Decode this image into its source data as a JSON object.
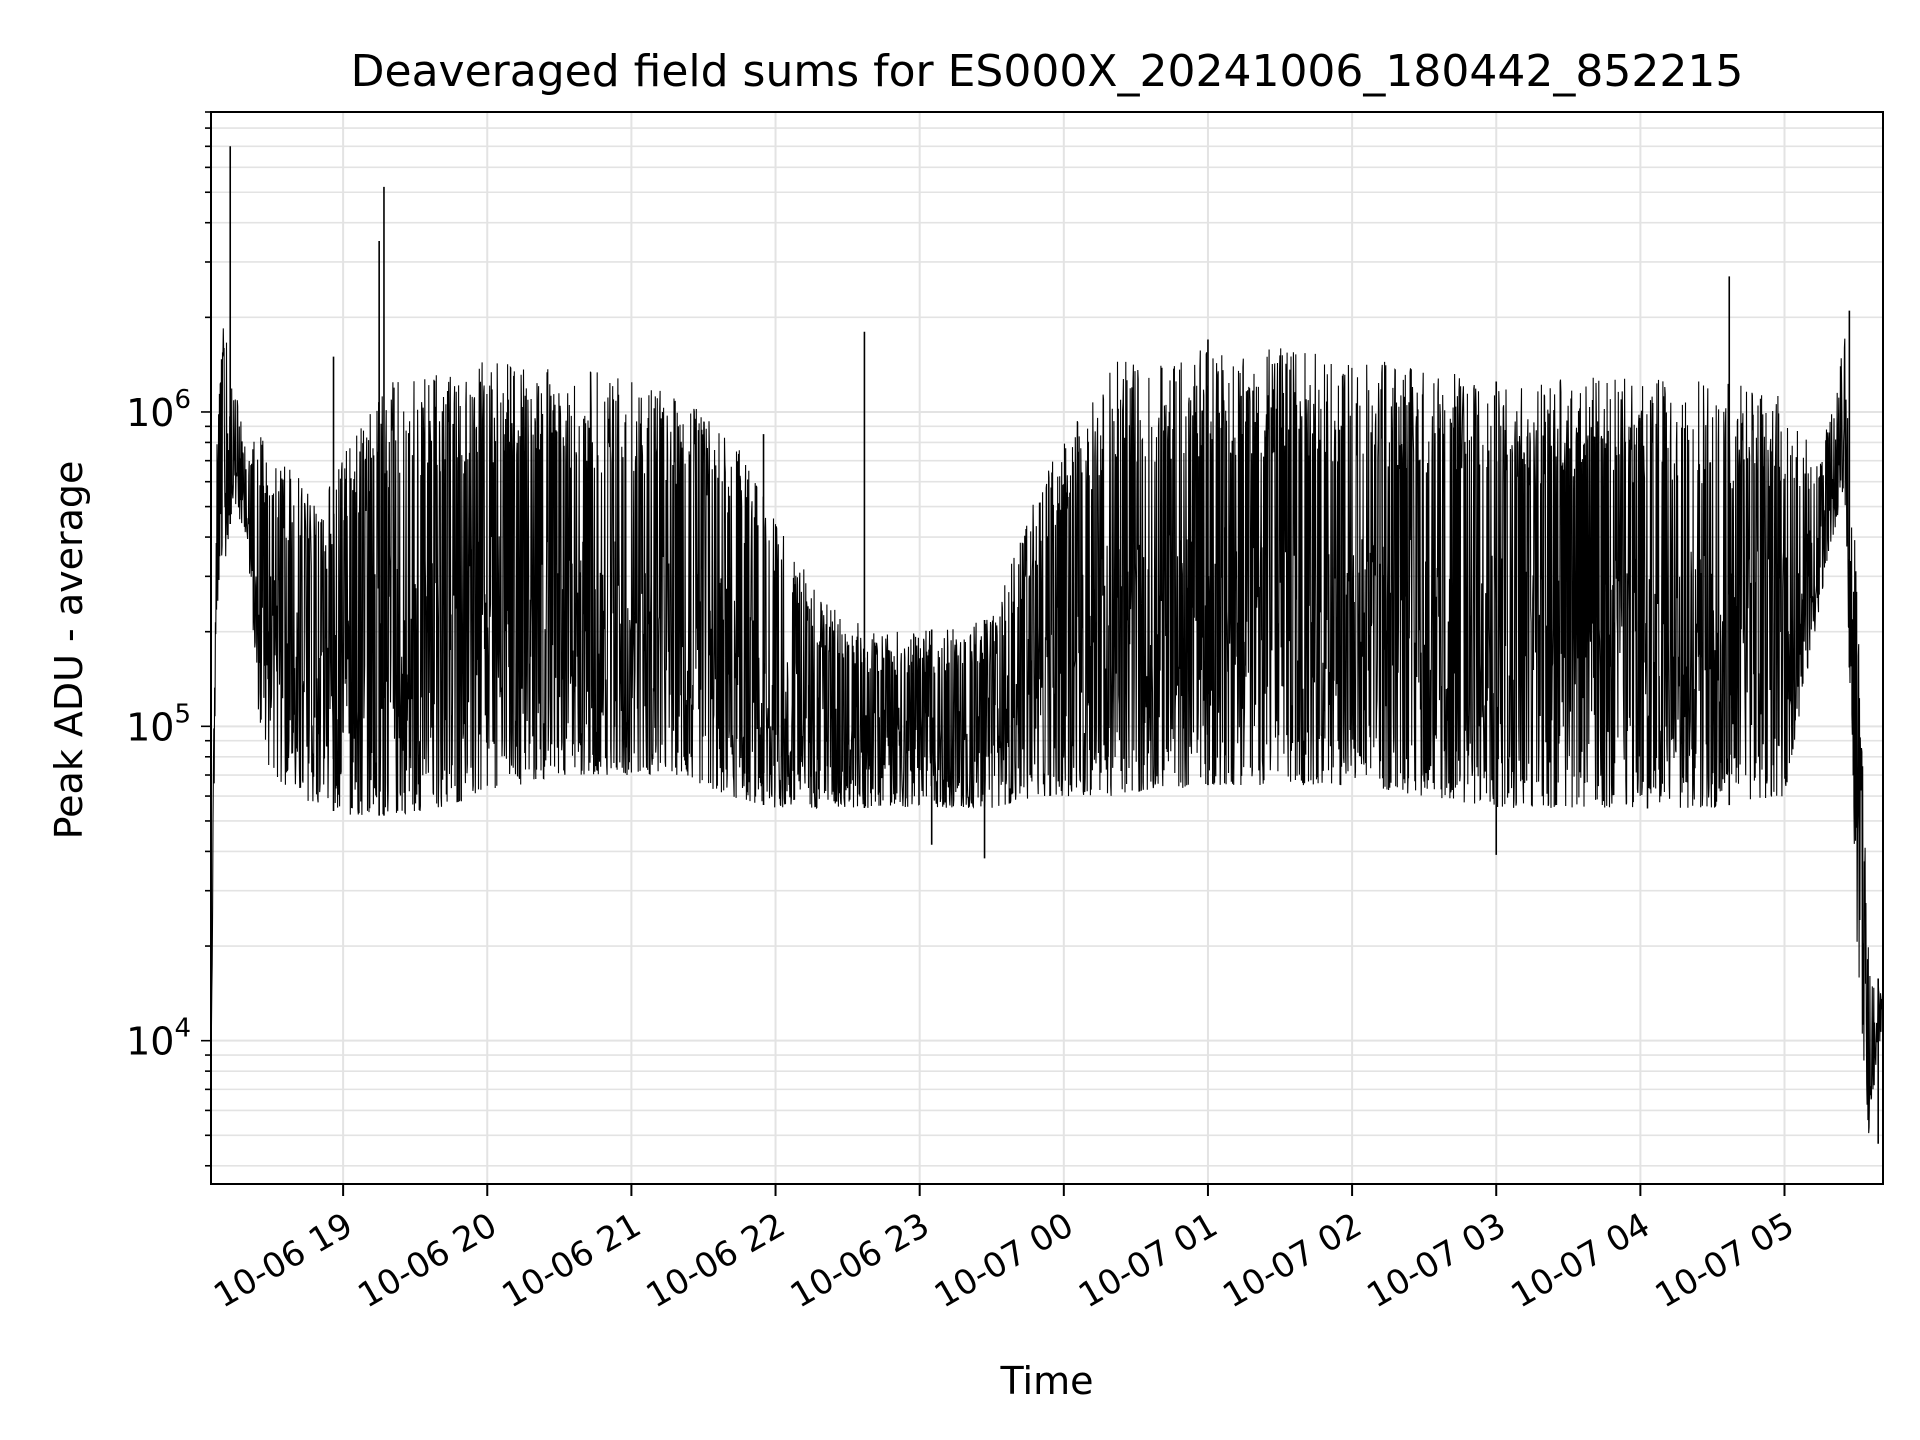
{
  "chart_data": {
    "type": "line",
    "title": "Deaveraged field sums for ES000X_20241006_180442_852215",
    "xlabel": "Time",
    "ylabel": "Peak ADU - average",
    "yscale": "log",
    "ylim": [
      3500,
      9000000
    ],
    "xlim": [
      "2024-10-06 18:05",
      "2024-10-07 05:41"
    ],
    "x_ticks": [
      {
        "at": "2024-10-06 19:00",
        "label": "10-06 19"
      },
      {
        "at": "2024-10-06 20:00",
        "label": "10-06 20"
      },
      {
        "at": "2024-10-06 21:00",
        "label": "10-06 21"
      },
      {
        "at": "2024-10-06 22:00",
        "label": "10-06 22"
      },
      {
        "at": "2024-10-06 23:00",
        "label": "10-06 23"
      },
      {
        "at": "2024-10-07 00:00",
        "label": "10-07 00"
      },
      {
        "at": "2024-10-07 01:00",
        "label": "10-07 01"
      },
      {
        "at": "2024-10-07 02:00",
        "label": "10-07 02"
      },
      {
        "at": "2024-10-07 03:00",
        "label": "10-07 03"
      },
      {
        "at": "2024-10-07 04:00",
        "label": "10-07 04"
      },
      {
        "at": "2024-10-07 05:00",
        "label": "10-07 05"
      }
    ],
    "y_ticks": [
      {
        "value": 10000,
        "base": "10",
        "exp": "4"
      },
      {
        "value": 100000,
        "base": "10",
        "exp": "5"
      },
      {
        "value": 1000000,
        "base": "10",
        "exp": "6"
      }
    ],
    "grid": true,
    "line_color": "#000000",
    "grid_color": "#e3e3e3",
    "series": [
      {
        "envelope": [
          {
            "t": "2024-10-06 18:05",
            "low": 8000,
            "high": 8000
          },
          {
            "t": "2024-10-06 18:07",
            "low": 180000,
            "high": 700000
          },
          {
            "t": "2024-10-06 18:10",
            "low": 300000,
            "high": 2200000
          },
          {
            "t": "2024-10-06 18:14",
            "low": 500000,
            "high": 1500000
          },
          {
            "t": "2024-10-06 18:20",
            "low": 400000,
            "high": 700000
          },
          {
            "t": "2024-10-06 18:26",
            "low": 80000,
            "high": 950000
          },
          {
            "t": "2024-10-06 18:35",
            "low": 65000,
            "high": 750000
          },
          {
            "t": "2024-10-06 18:50",
            "low": 55000,
            "high": 500000
          },
          {
            "t": "2024-10-06 19:05",
            "low": 52000,
            "high": 900000
          },
          {
            "t": "2024-10-06 19:20",
            "low": 52000,
            "high": 1300000
          },
          {
            "t": "2024-10-06 19:40",
            "low": 55000,
            "high": 1350000
          },
          {
            "t": "2024-10-06 20:00",
            "low": 60000,
            "high": 1450000
          },
          {
            "t": "2024-10-06 20:30",
            "low": 70000,
            "high": 1400000
          },
          {
            "t": "2024-10-06 21:00",
            "low": 70000,
            "high": 1300000
          },
          {
            "t": "2024-10-06 21:20",
            "low": 70000,
            "high": 1100000
          },
          {
            "t": "2024-10-06 21:40",
            "low": 60000,
            "high": 900000
          },
          {
            "t": "2024-10-06 22:00",
            "low": 55000,
            "high": 450000
          },
          {
            "t": "2024-10-06 22:20",
            "low": 55000,
            "high": 250000
          },
          {
            "t": "2024-10-06 22:40",
            "low": 55000,
            "high": 200000
          },
          {
            "t": "2024-10-06 23:00",
            "low": 55000,
            "high": 200000
          },
          {
            "t": "2024-10-06 23:30",
            "low": 55000,
            "high": 220000
          },
          {
            "t": "2024-10-06 23:50",
            "low": 60000,
            "high": 600000
          },
          {
            "t": "2024-10-07 00:20",
            "low": 60000,
            "high": 1500000
          },
          {
            "t": "2024-10-07 01:00",
            "low": 65000,
            "high": 1600000
          },
          {
            "t": "2024-10-07 01:30",
            "low": 65000,
            "high": 1600000
          },
          {
            "t": "2024-10-07 02:00",
            "low": 65000,
            "high": 1500000
          },
          {
            "t": "2024-10-07 02:30",
            "low": 60000,
            "high": 1400000
          },
          {
            "t": "2024-10-07 03:00",
            "low": 55000,
            "high": 1250000
          },
          {
            "t": "2024-10-07 03:30",
            "low": 55000,
            "high": 1300000
          },
          {
            "t": "2024-10-07 04:00",
            "low": 55000,
            "high": 1300000
          },
          {
            "t": "2024-10-07 04:30",
            "low": 55000,
            "high": 1250000
          },
          {
            "t": "2024-10-07 05:00",
            "low": 60000,
            "high": 1200000
          },
          {
            "t": "2024-10-07 05:15",
            "low": 250000,
            "high": 700000
          },
          {
            "t": "2024-10-07 05:25",
            "low": 600000,
            "high": 1800000
          },
          {
            "t": "2024-10-07 05:30",
            "low": 20000,
            "high": 300000
          },
          {
            "t": "2024-10-07 05:35",
            "low": 5000,
            "high": 20000
          },
          {
            "t": "2024-10-07 05:41",
            "low": 12000,
            "high": 14000
          }
        ],
        "spikes": [
          {
            "t": "2024-10-06 18:13",
            "value": 7000000
          },
          {
            "t": "2024-10-06 18:56",
            "value": 1500000
          },
          {
            "t": "2024-10-06 19:17",
            "value": 5200000
          },
          {
            "t": "2024-10-06 19:15",
            "value": 3500000
          },
          {
            "t": "2024-10-06 21:55",
            "value": 850000
          },
          {
            "t": "2024-10-06 22:37",
            "value": 1800000
          },
          {
            "t": "2024-10-07 01:00",
            "value": 1700000
          },
          {
            "t": "2024-10-07 04:37",
            "value": 2700000
          },
          {
            "t": "2024-10-07 05:27",
            "value": 2100000
          }
        ],
        "dips": [
          {
            "t": "2024-10-06 23:05",
            "value": 42000
          },
          {
            "t": "2024-10-06 23:27",
            "value": 38000
          },
          {
            "t": "2024-10-07 03:00",
            "value": 39000
          },
          {
            "t": "2024-10-07 05:39",
            "value": 4700
          }
        ]
      }
    ]
  }
}
